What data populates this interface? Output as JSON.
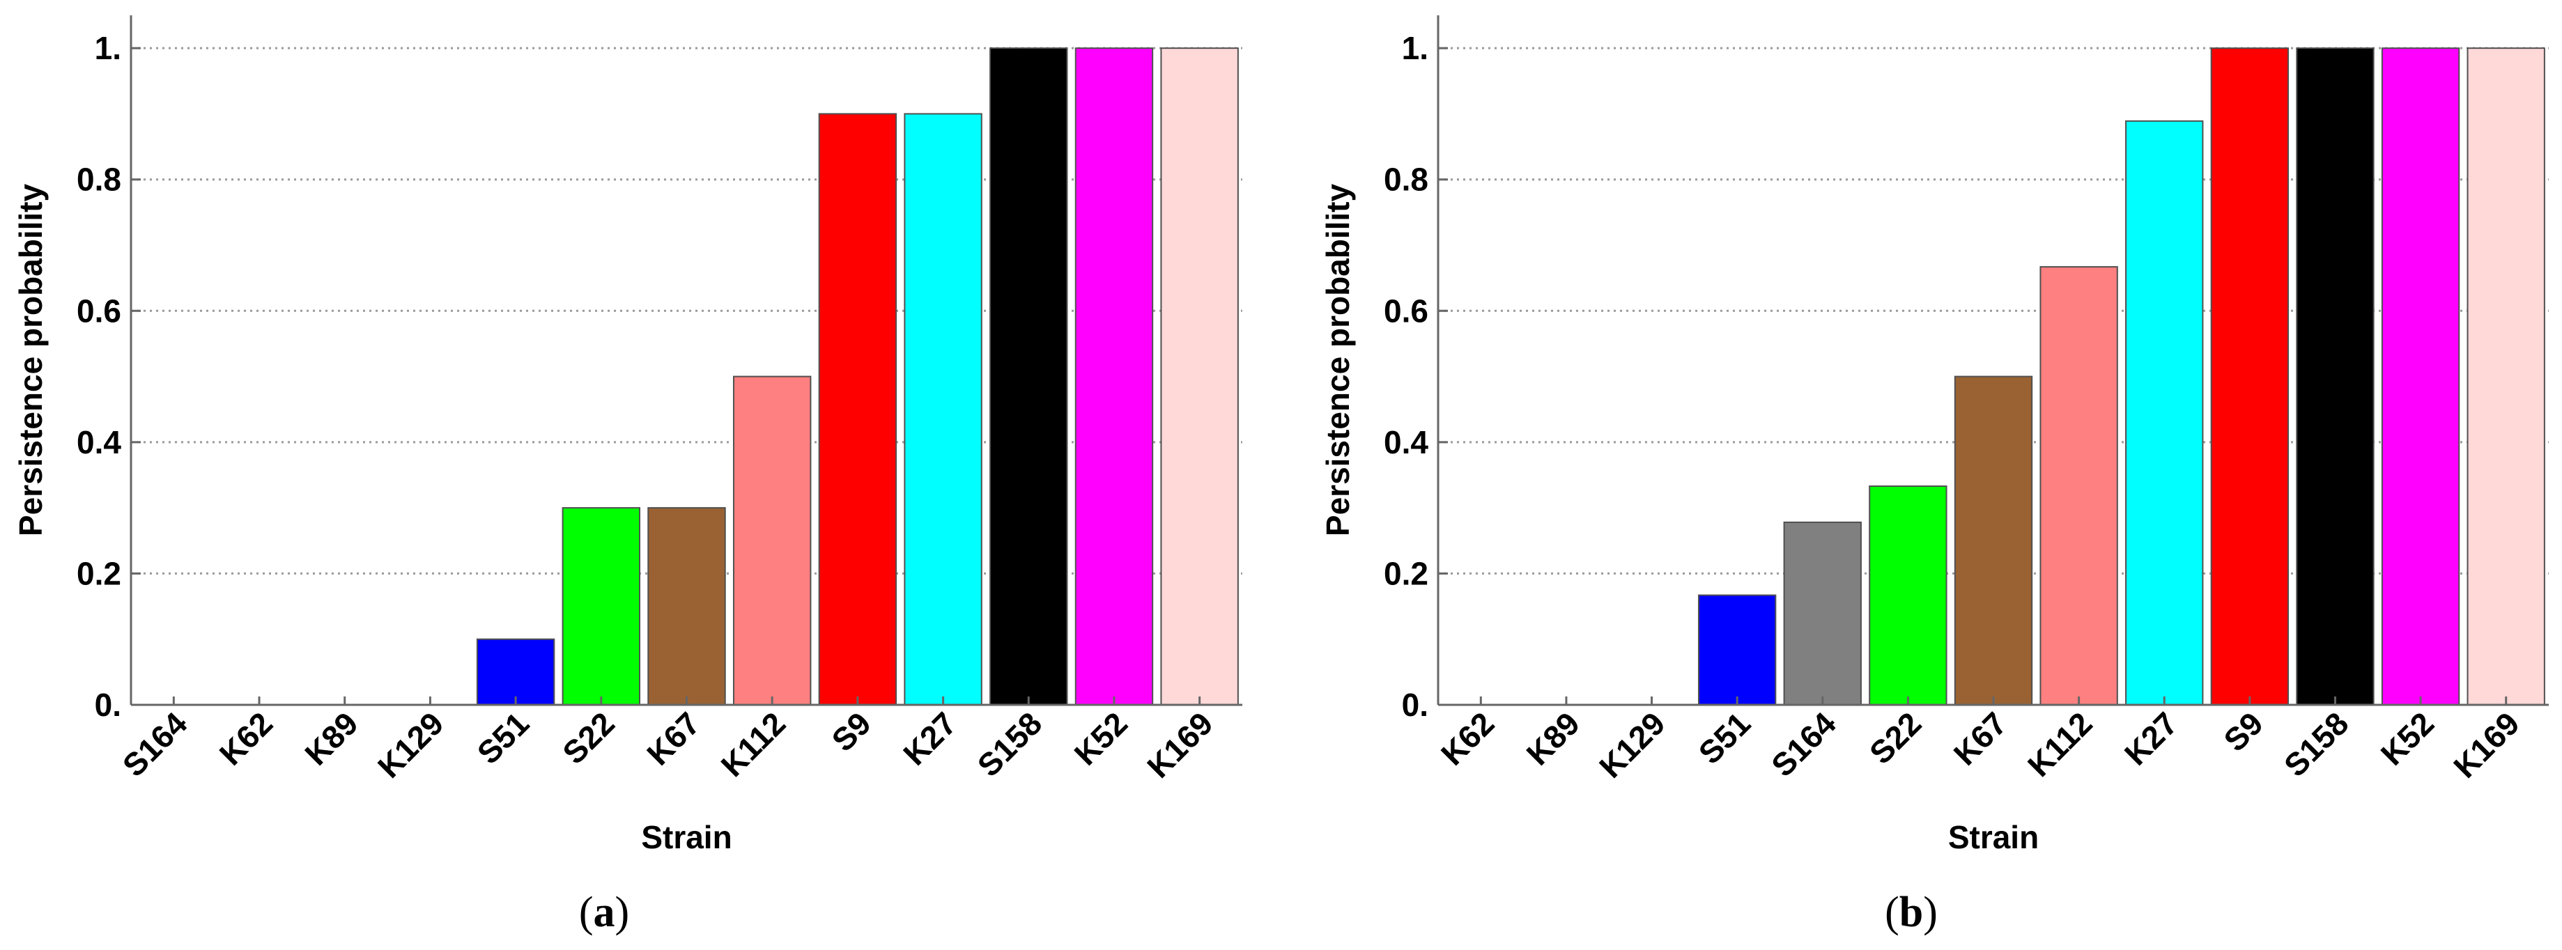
{
  "chart_data": [
    {
      "type": "bar",
      "caption": "(a)",
      "caption_letter": "a",
      "xlabel": "Strain",
      "ylabel": "Persistence probability",
      "ylim": [
        0,
        1.05
      ],
      "yticks": [
        0,
        0.2,
        0.4,
        0.6,
        0.8,
        1
      ],
      "ytick_labels": [
        "0.",
        "0.2",
        "0.4",
        "0.6",
        "0.8",
        "1."
      ],
      "grid": "horizontal dotted",
      "categories": [
        "S164",
        "K62",
        "K89",
        "K129",
        "S51",
        "S22",
        "K67",
        "K112",
        "S9",
        "K27",
        "S158",
        "K52",
        "K169"
      ],
      "values": [
        0,
        0,
        0,
        0,
        0.1,
        0.3,
        0.3,
        0.5,
        0.9,
        0.9,
        1.0,
        1.0,
        1.0
      ],
      "colors": [
        "#ffffff",
        "#ffffff",
        "#ffffff",
        "#ffffff",
        "#0000ff",
        "#00ff00",
        "#9a6233",
        "#ff8080",
        "#ff0000",
        "#00ffff",
        "#000000",
        "#ff00ff",
        "#ffd8d8"
      ]
    },
    {
      "type": "bar",
      "caption": "(b)",
      "caption_letter": "b",
      "xlabel": "Strain",
      "ylabel": "Persistence probability",
      "ylim": [
        0,
        1.05
      ],
      "yticks": [
        0,
        0.2,
        0.4,
        0.6,
        0.8,
        1
      ],
      "ytick_labels": [
        "0.",
        "0.2",
        "0.4",
        "0.6",
        "0.8",
        "1."
      ],
      "grid": "horizontal dotted",
      "categories": [
        "K62",
        "K89",
        "K129",
        "S51",
        "S164",
        "S22",
        "K67",
        "K112",
        "K27",
        "S9",
        "S158",
        "K52",
        "K169"
      ],
      "values": [
        0,
        0,
        0,
        0.167,
        0.278,
        0.333,
        0.5,
        0.667,
        0.889,
        1.0,
        1.0,
        1.0,
        1.0
      ],
      "colors": [
        "#ffffff",
        "#ffffff",
        "#ffffff",
        "#0000ff",
        "#808080",
        "#00ff00",
        "#9a6233",
        "#ff8080",
        "#00ffff",
        "#ff0000",
        "#000000",
        "#ff00ff",
        "#ffd8d8"
      ]
    }
  ]
}
